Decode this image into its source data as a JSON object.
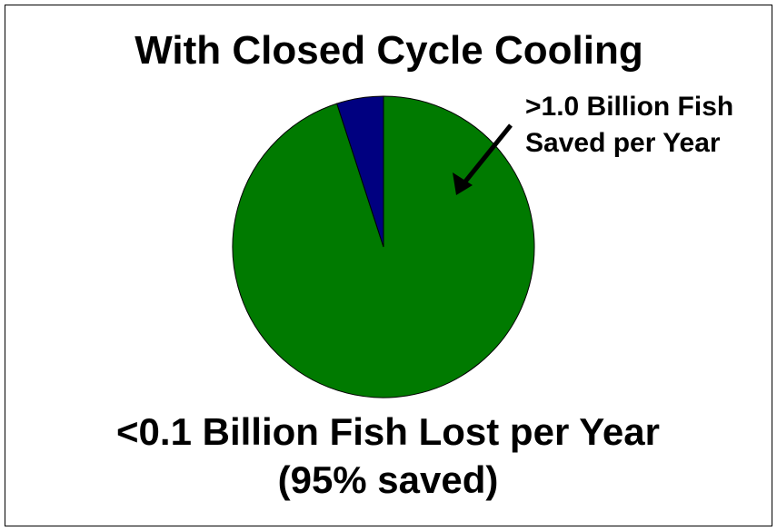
{
  "chart_data": {
    "type": "pie",
    "title": "With Closed Cycle Cooling",
    "values": [
      95,
      5
    ],
    "colors": [
      "#007a00",
      "#000080"
    ],
    "annotation": [
      ">1.0 Billion Fish",
      "Saved per Year"
    ],
    "caption": [
      "<0.1 Billion Fish Lost per Year",
      "(95% saved)"
    ]
  }
}
